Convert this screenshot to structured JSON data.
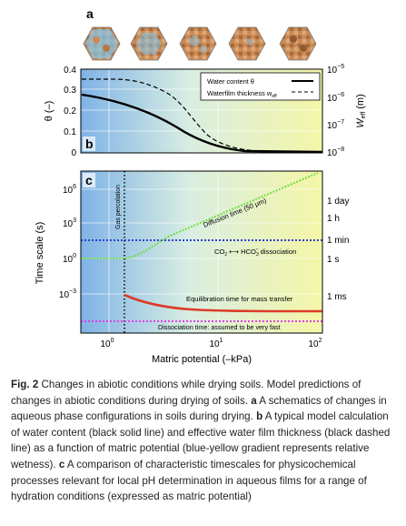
{
  "panel_labels": {
    "a": "a",
    "b": "b",
    "c": "c"
  },
  "panel_b": {
    "y_left_label": "θ (–)",
    "y_right_label": "W",
    "y_right_label_sub": "eff",
    "y_right_label_unit": "(m)",
    "left_ticks": [
      "0.4",
      "0.3",
      "0.2",
      "0.1",
      "0"
    ],
    "right_ticks": [
      {
        "base": "10",
        "exp": "−5"
      },
      {
        "base": "10",
        "exp": "−6"
      },
      {
        "base": "10",
        "exp": "−7"
      },
      {
        "base": "10",
        "exp": "−8"
      }
    ],
    "legend": {
      "water_content": "Water content θ",
      "waterfilm_prefix": "Waterfilm thickness w",
      "waterfilm_sub": "eff"
    }
  },
  "panel_c": {
    "y_label": "Time scale (s)",
    "left_ticks": [
      {
        "base": "10",
        "exp": "6"
      },
      {
        "base": "10",
        "exp": "3"
      },
      {
        "base": "10",
        "exp": "0"
      },
      {
        "base": "10",
        "exp": "−3"
      }
    ],
    "right_ticks": [
      "1 day",
      "1 h",
      "1 min",
      "1 s",
      "1 ms"
    ],
    "x_ticks": [
      {
        "base": "10",
        "exp": "0"
      },
      {
        "base": "10",
        "exp": "1"
      },
      {
        "base": "10",
        "exp": "2"
      }
    ],
    "x_label": "Matric potential (–kPa)",
    "annotations": {
      "gas_percolation": "Gas percolation",
      "diffusion_time": "Diffusion time (50 μm)",
      "co2_left": "CO",
      "co2_sub": "2",
      "co2_arrow": "⟷",
      "hco3": "HCO",
      "hco3_sub": "3",
      "hco3_sup": "−",
      "co2_right": "dissociation",
      "equilibration": "Equilibration time for mass transfer",
      "dissociation_fast": "Dissociation time: assumed to be very fast"
    }
  },
  "colors": {
    "blue": "#2f3fd6",
    "green": "#6fe040",
    "red": "#dd3b28",
    "magenta": "#e040e8",
    "gradient_start": "#7fb3e6",
    "gradient_mid": "#d9eee2",
    "gradient_end": "#f5f6a6"
  },
  "caption": {
    "fig_label": "Fig. 2",
    "intro": " Changes in abiotic conditions while drying soils. Model predictions of changes in abiotic conditions during drying of soils. ",
    "a_label": "a",
    "a_text": " A schematics of changes in aqueous phase configurations in soils during drying. ",
    "b_label": "b",
    "b_text": " A typical model calculation of water content (black solid line) and effective water film thickness (black dashed line) as a function of matric potential (blue-yellow gradient represents relative wetness). ",
    "c_label": "c",
    "c_text": " A comparison of characteristic timescales for physicochemical processes relevant for local pH determination in aqueous films for a range of hydration conditions (expressed as matric potential)"
  }
}
